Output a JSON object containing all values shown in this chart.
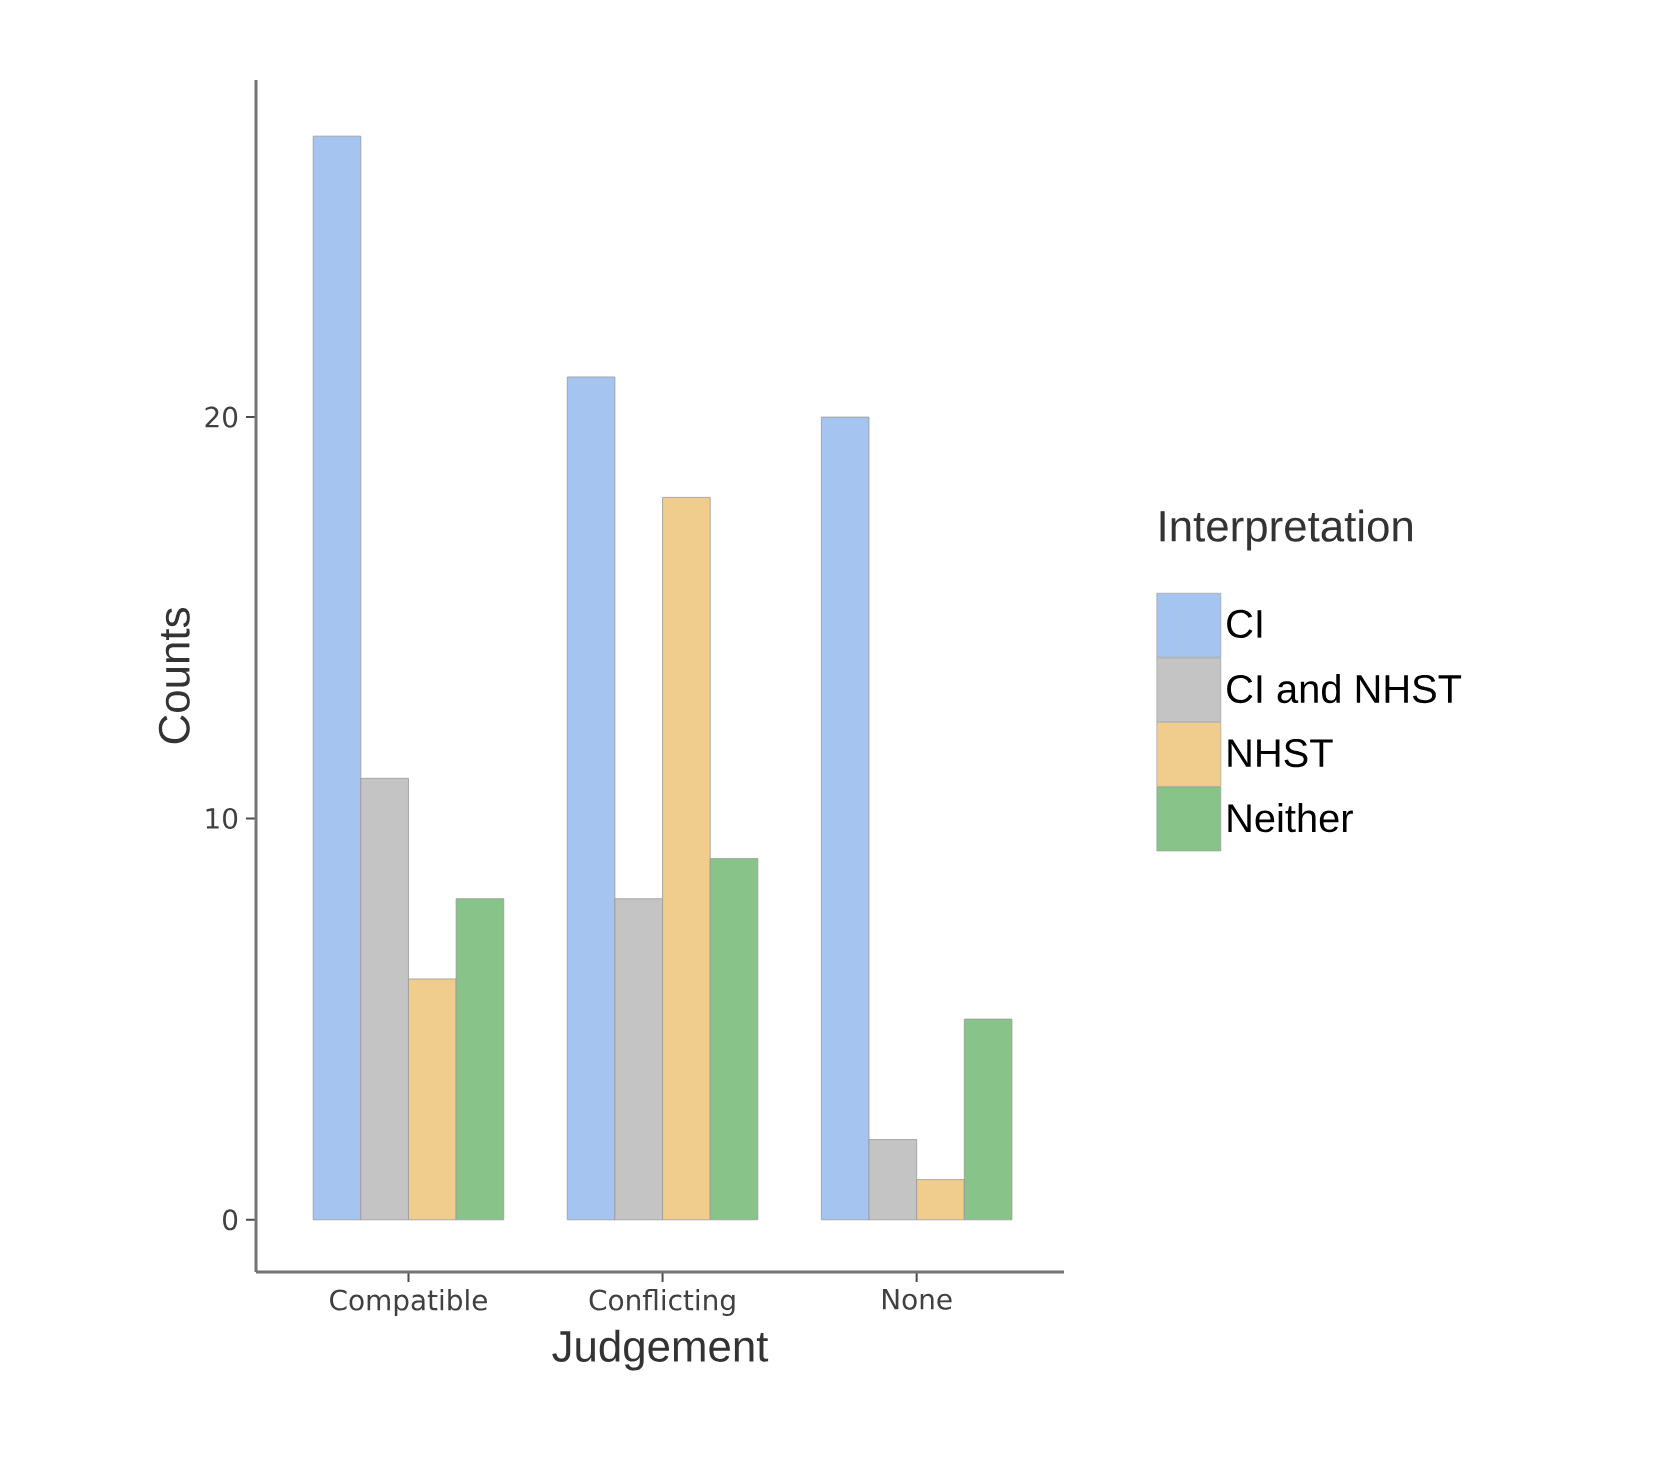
{
  "chart_data": {
    "type": "bar",
    "xlabel": "Judgement",
    "ylabel": "Counts",
    "legend_title": "Interpretation",
    "categories": [
      "Compatible",
      "Conflicting",
      "None"
    ],
    "series": [
      {
        "name": "CI",
        "color": "#a6c4f0",
        "values": [
          27,
          21,
          20
        ]
      },
      {
        "name": "CI and NHST",
        "color": "#c4c4c4",
        "values": [
          11,
          8,
          2
        ]
      },
      {
        "name": "NHST",
        "color": "#f0cd8c",
        "values": [
          6,
          18,
          1
        ]
      },
      {
        "name": "Neither",
        "color": "#88c389",
        "values": [
          8,
          9,
          5
        ]
      }
    ],
    "ylim": [
      -1.3,
      28.4
    ],
    "yticks": [
      0,
      10,
      20
    ],
    "grid": false,
    "legend": "right"
  }
}
